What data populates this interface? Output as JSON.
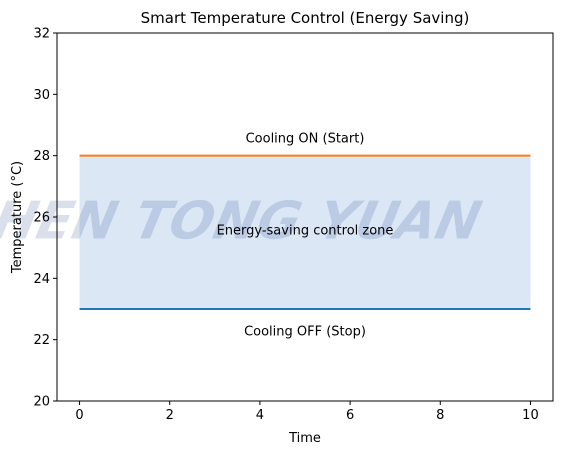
{
  "chart_data": {
    "type": "line",
    "title": "Smart Temperature Control (Energy Saving)",
    "xlabel": "Time",
    "ylabel": "Temperature (°C)",
    "xlim": [
      -0.5,
      10.5
    ],
    "ylim": [
      20,
      32
    ],
    "xticks": [
      0,
      2,
      4,
      6,
      8,
      10
    ],
    "yticks": [
      20,
      22,
      24,
      26,
      28,
      30,
      32
    ],
    "series": [
      {
        "x": [
          0,
          10
        ],
        "values": [
          28,
          28
        ],
        "color": "#ff7f0e"
      },
      {
        "x": [
          0,
          10
        ],
        "values": [
          23,
          23
        ],
        "color": "#1f77b4"
      }
    ],
    "band": {
      "x": [
        0,
        10
      ],
      "y_low": 23,
      "y_high": 28,
      "color": "#dce7f5"
    },
    "annotations": [
      {
        "text": "Cooling ON (Start)",
        "x": 5,
        "y": 28.6
      },
      {
        "text": "Cooling OFF (Stop)",
        "x": 5,
        "y": 22.3
      },
      {
        "text": "Energy-saving control zone",
        "x": 5,
        "y": 25.6
      }
    ],
    "grid": false,
    "watermark": "CHEN TONG YUAN"
  }
}
